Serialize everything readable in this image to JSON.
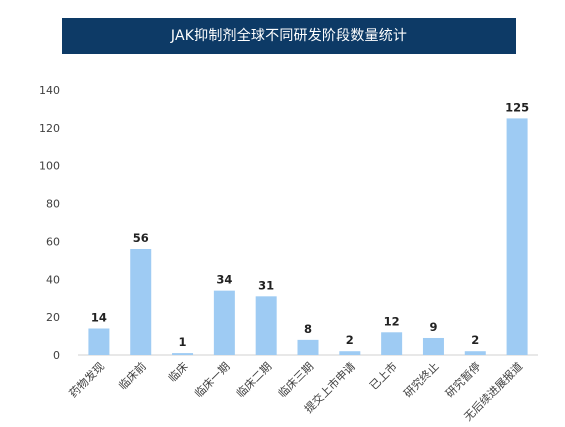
{
  "chart_data": {
    "type": "bar",
    "title": "JAK抑制剂全球不同研发阶段数量统计",
    "categories": [
      "药物发现",
      "临床前",
      "临床",
      "临床一期",
      "临床二期",
      "临床三期",
      "提交上市申请",
      "已上市",
      "研究终止",
      "研究暂停",
      "无后续进展报道"
    ],
    "values": [
      14,
      56,
      1,
      34,
      31,
      8,
      2,
      12,
      9,
      2,
      125
    ],
    "yticks": [
      0,
      20,
      40,
      60,
      80,
      100,
      120,
      140
    ],
    "ylim": [
      0,
      140
    ],
    "xlabel": "",
    "ylabel": "",
    "grid": false,
    "colors": {
      "bar": "#9ecbf3",
      "title_bg": "#0d3a66",
      "axis": "#d0d0d0"
    }
  }
}
